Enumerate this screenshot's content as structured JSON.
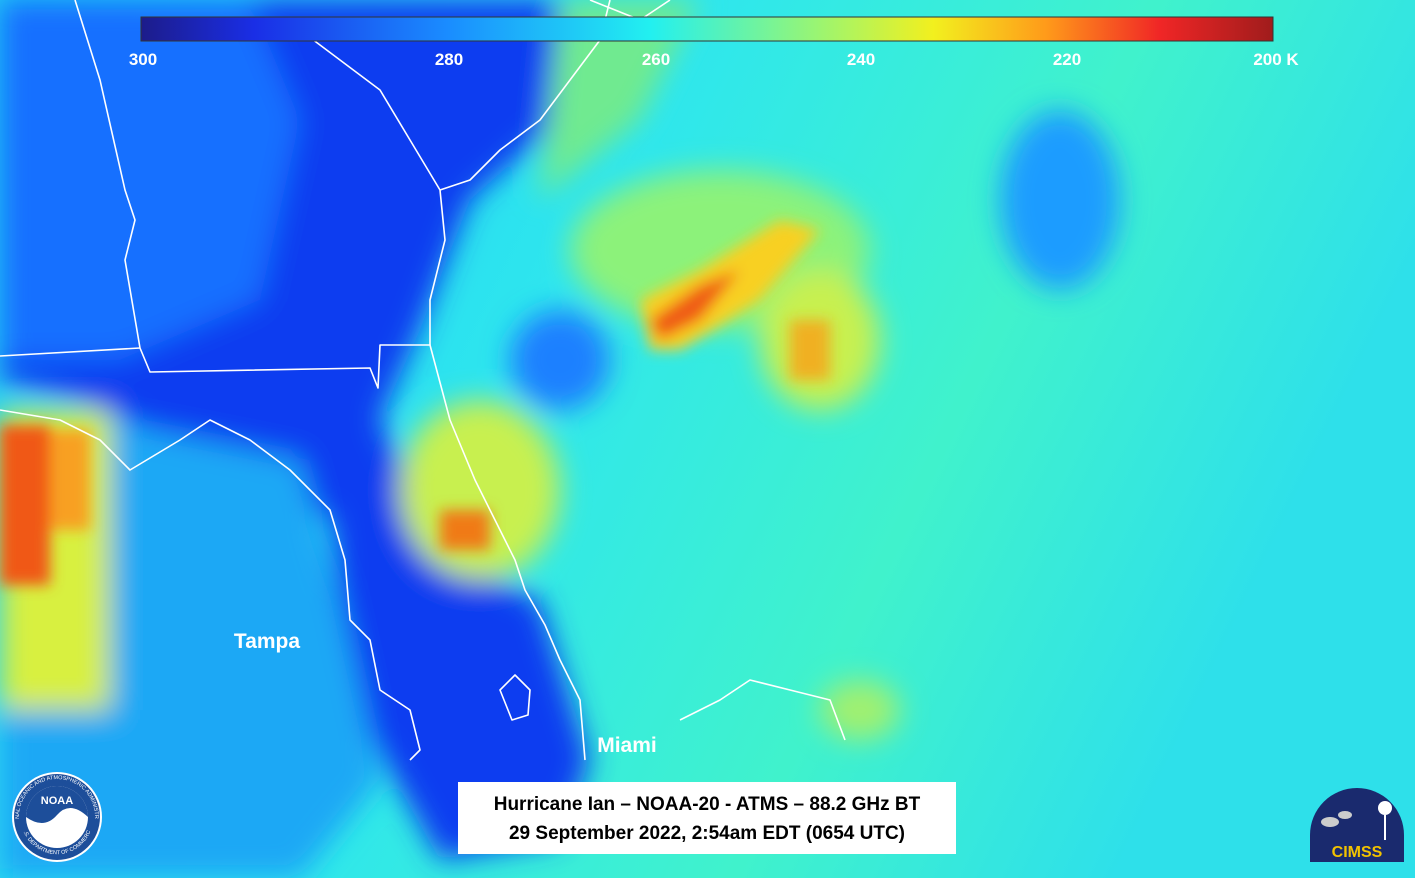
{
  "colorbar": {
    "ticks": [
      300,
      280,
      260,
      240,
      220,
      {
        "value": 200,
        "label": "200 K"
      }
    ]
  },
  "places": [
    "Tampa",
    "Miami"
  ],
  "caption": {
    "line1": "Hurricane Ian – NOAA-20 - ATMS – 88.2 GHz BT",
    "line2": "29 September 2022, 2:54am EDT (0654 UTC)"
  },
  "logos": {
    "noaa": "NOAA",
    "noaa_ring_top": "NATIONAL OCEANIC AND ATMOSPHERIC ADMINISTRATION",
    "noaa_ring_bottom": "U.S. DEPARTMENT OF COMMERCE",
    "cimss": "CIMSS"
  }
}
